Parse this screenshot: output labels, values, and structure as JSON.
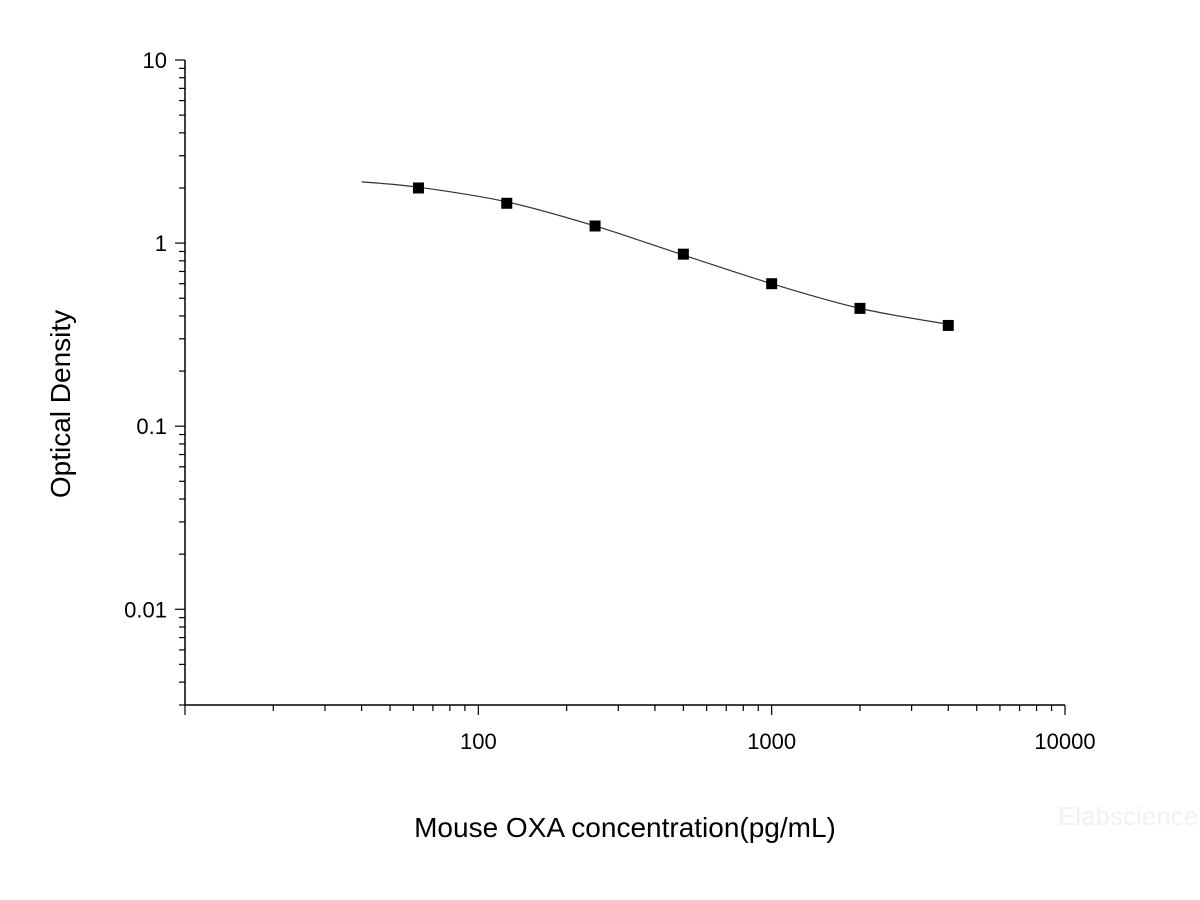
{
  "chart_data": {
    "type": "scatter",
    "xlabel": "Mouse OXA concentration(pg/mL)",
    "ylabel": "Optical Density",
    "x_scale": "log",
    "y_scale": "log",
    "xlim": [
      10,
      10000
    ],
    "ylim": [
      0.003,
      10
    ],
    "x_ticks": [
      {
        "value": 100,
        "label": "100"
      },
      {
        "value": 1000,
        "label": "1000"
      },
      {
        "value": 10000,
        "label": "10000"
      }
    ],
    "y_ticks": [
      {
        "value": 10,
        "label": "10"
      },
      {
        "value": 1,
        "label": "1"
      },
      {
        "value": 0.1,
        "label": "0.1"
      },
      {
        "value": 0.01,
        "label": "0.01"
      }
    ],
    "grid": false,
    "series": [
      {
        "type": "scatter",
        "x": [
          62.5,
          125,
          250,
          500,
          1000,
          2000,
          4000
        ],
        "y": [
          2.0,
          1.65,
          1.24,
          0.87,
          0.6,
          0.44,
          0.355
        ],
        "marker": "square",
        "color": "#000000"
      },
      {
        "type": "line",
        "x": [
          40,
          62.5,
          125,
          250,
          500,
          1000,
          2000,
          4000
        ],
        "y": [
          2.16,
          2.02,
          1.68,
          1.24,
          0.86,
          0.6,
          0.44,
          0.36
        ],
        "color": "#333333"
      }
    ],
    "watermark": "Elabscience"
  }
}
